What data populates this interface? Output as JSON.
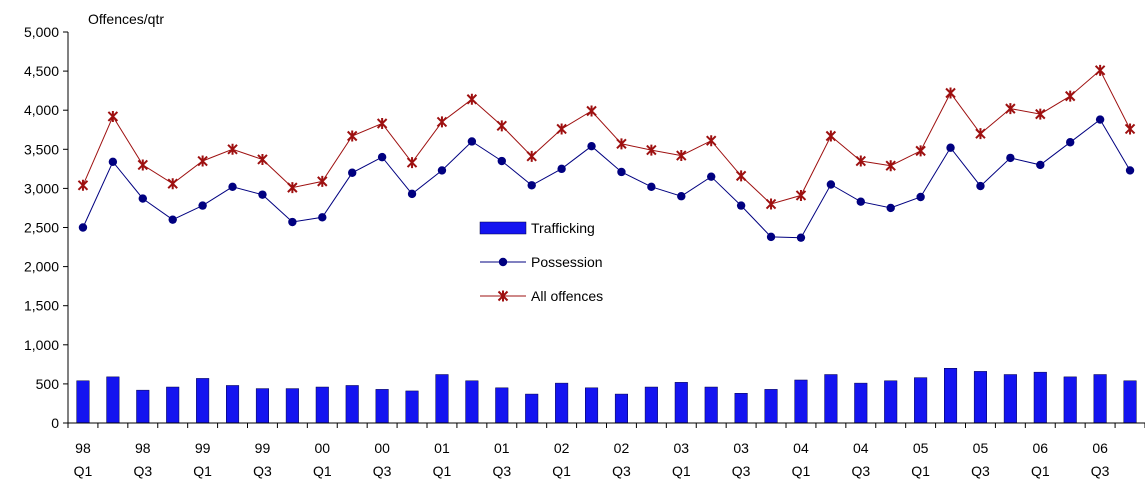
{
  "chart_data": {
    "type": "bar",
    "ylabel": "Offences/qtr",
    "ylim": [
      0,
      5000
    ],
    "y_ticks": [
      0,
      500,
      1000,
      1500,
      2000,
      2500,
      3000,
      3500,
      4000,
      4500,
      5000
    ],
    "y_tick_labels": [
      "0",
      "500",
      "1,000",
      "1,500",
      "2,000",
      "2,500",
      "3,000",
      "3,500",
      "4,000",
      "4,500",
      "5,000"
    ],
    "grid": false,
    "legend_position": "center",
    "categories": [
      "98 Q1",
      "98 Q2",
      "98 Q3",
      "98 Q4",
      "99 Q1",
      "99 Q2",
      "99 Q3",
      "99 Q4",
      "00 Q1",
      "00 Q2",
      "00 Q3",
      "00 Q4",
      "01 Q1",
      "01 Q2",
      "01 Q3",
      "01 Q4",
      "02 Q1",
      "02 Q2",
      "02 Q3",
      "02 Q4",
      "03 Q1",
      "03 Q2",
      "03 Q3",
      "03 Q4",
      "04 Q1",
      "04 Q2",
      "04 Q3",
      "04 Q4",
      "05 Q1",
      "05 Q2",
      "05 Q3",
      "05 Q4",
      "06 Q1",
      "06 Q2",
      "06 Q3",
      "06 Q4"
    ],
    "x_tick_labels": [
      {
        "index": 0,
        "year": "98",
        "quarter": "Q1"
      },
      {
        "index": 2,
        "year": "98",
        "quarter": "Q3"
      },
      {
        "index": 4,
        "year": "99",
        "quarter": "Q1"
      },
      {
        "index": 6,
        "year": "99",
        "quarter": "Q3"
      },
      {
        "index": 8,
        "year": "00",
        "quarter": "Q1"
      },
      {
        "index": 10,
        "year": "00",
        "quarter": "Q3"
      },
      {
        "index": 12,
        "year": "01",
        "quarter": "Q1"
      },
      {
        "index": 14,
        "year": "01",
        "quarter": "Q3"
      },
      {
        "index": 16,
        "year": "02",
        "quarter": "Q1"
      },
      {
        "index": 18,
        "year": "02",
        "quarter": "Q3"
      },
      {
        "index": 20,
        "year": "03",
        "quarter": "Q1"
      },
      {
        "index": 22,
        "year": "03",
        "quarter": "Q3"
      },
      {
        "index": 24,
        "year": "04",
        "quarter": "Q1"
      },
      {
        "index": 26,
        "year": "04",
        "quarter": "Q3"
      },
      {
        "index": 28,
        "year": "05",
        "quarter": "Q1"
      },
      {
        "index": 30,
        "year": "05",
        "quarter": "Q3"
      },
      {
        "index": 32,
        "year": "06",
        "quarter": "Q1"
      },
      {
        "index": 34,
        "year": "06",
        "quarter": "Q3"
      }
    ],
    "series": [
      {
        "name": "Trafficking",
        "kind": "bar",
        "color": "#1414F0",
        "values": [
          540,
          590,
          420,
          460,
          570,
          480,
          440,
          440,
          460,
          480,
          430,
          410,
          620,
          540,
          450,
          370,
          510,
          450,
          370,
          460,
          520,
          460,
          380,
          430,
          550,
          620,
          510,
          540,
          580,
          700,
          660,
          620,
          650,
          590,
          620,
          540
        ]
      },
      {
        "name": "Possession",
        "kind": "line",
        "marker": "circle",
        "color": "#000080",
        "values": [
          2500,
          3340,
          2870,
          2600,
          2780,
          3020,
          2920,
          2570,
          2630,
          3200,
          3400,
          2930,
          3230,
          3600,
          3350,
          3040,
          3250,
          3540,
          3210,
          3020,
          2900,
          3150,
          2780,
          2380,
          2370,
          3050,
          2830,
          2750,
          2890,
          3520,
          3030,
          3390,
          3300,
          3590,
          3880,
          3230
        ]
      },
      {
        "name": "All offences",
        "kind": "line",
        "marker": "asterisk",
        "color": "#9E1010",
        "values": [
          3040,
          3920,
          3300,
          3060,
          3350,
          3500,
          3370,
          3010,
          3090,
          3670,
          3830,
          3330,
          3850,
          4140,
          3800,
          3410,
          3760,
          3990,
          3570,
          3490,
          3420,
          3610,
          3160,
          2800,
          2910,
          3670,
          3350,
          3290,
          3480,
          4220,
          3700,
          4020,
          3950,
          4180,
          4510,
          3760
        ]
      }
    ]
  }
}
